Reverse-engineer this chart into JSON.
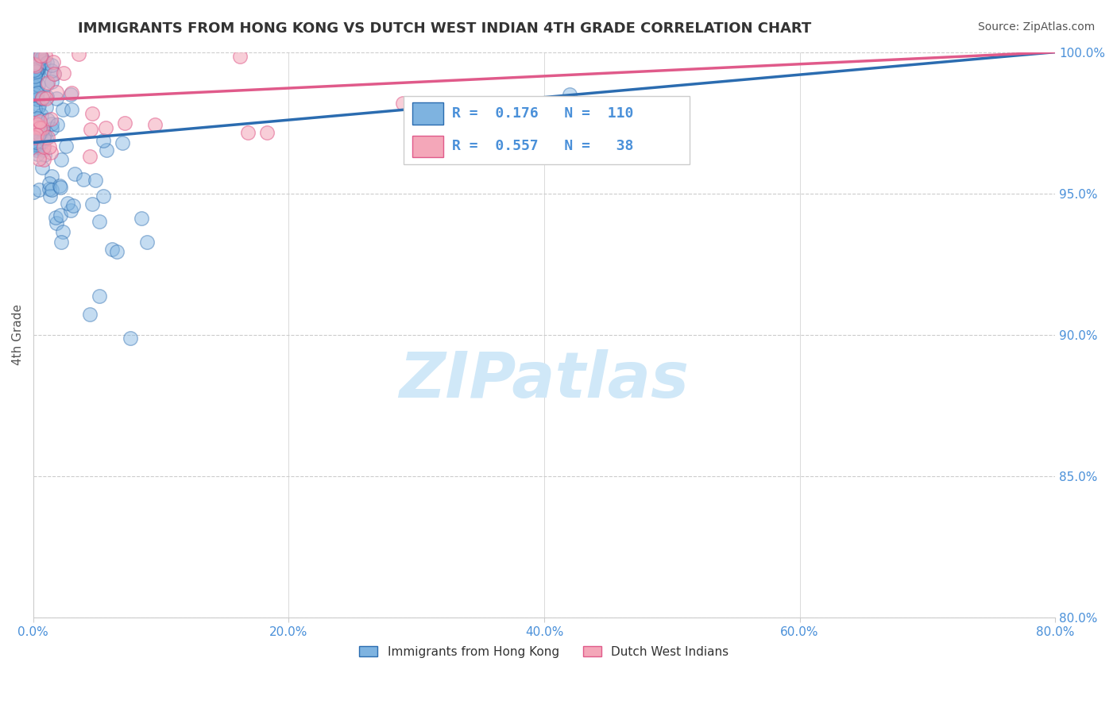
{
  "title": "IMMIGRANTS FROM HONG KONG VS DUTCH WEST INDIAN 4TH GRADE CORRELATION CHART",
  "source": "Source: ZipAtlas.com",
  "ylabel": "4th Grade",
  "xlim": [
    0.0,
    80.0
  ],
  "ylim": [
    80.0,
    100.0
  ],
  "xticks": [
    0.0,
    20.0,
    40.0,
    60.0,
    80.0
  ],
  "yticks": [
    80.0,
    85.0,
    90.0,
    95.0,
    100.0
  ],
  "xticklabels": [
    "0.0%",
    "20.0%",
    "40.0%",
    "60.0%",
    "80.0%"
  ],
  "yticklabels": [
    "80.0%",
    "85.0%",
    "90.0%",
    "95.0%",
    "100.0%"
  ],
  "legend1_label": "Immigrants from Hong Kong",
  "legend2_label": "Dutch West Indians",
  "r1": 0.176,
  "n1": 110,
  "r2": 0.557,
  "n2": 38,
  "color_blue": "#7eb3e0",
  "color_pink": "#f4a7b9",
  "color_blue_line": "#2b6cb0",
  "color_pink_line": "#e05a8a",
  "tick_color": "#4a90d9",
  "watermark_color": "#d0e8f8",
  "watermark": "ZIPatlas"
}
